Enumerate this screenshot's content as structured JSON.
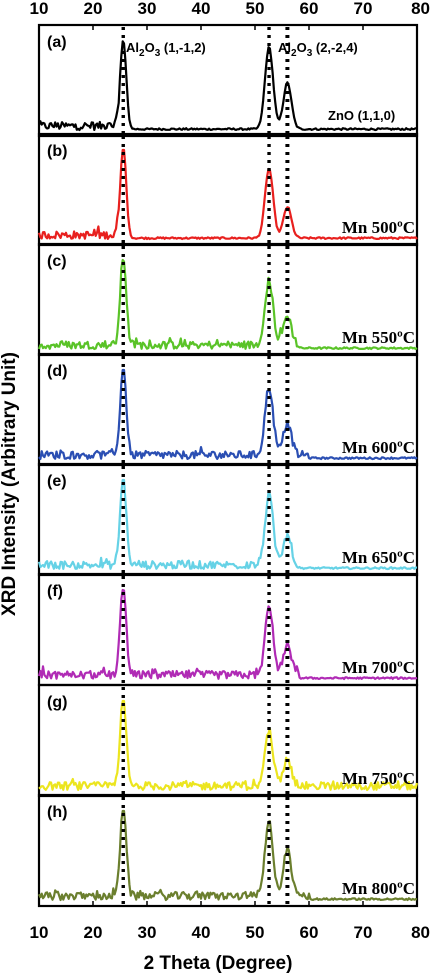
{
  "chart_data": {
    "type": "line",
    "xlabel": "2 Theta (Degree)",
    "ylabel": "XRD Intensity (Arbitrary Unit)",
    "xlim": [
      10,
      80
    ],
    "xticks": [
      "10",
      "20",
      "30",
      "40",
      "50",
      "60",
      "70",
      "80"
    ],
    "reference_lines_deg": [
      25.6,
      52.6,
      56.0
    ],
    "panels": [
      {
        "tag": "(a)",
        "color": "#000000",
        "label": "",
        "peaks": [
          [
            25.6,
            1.0
          ],
          [
            52.6,
            0.92
          ],
          [
            56.0,
            0.52
          ]
        ],
        "noise_end": 25
      },
      {
        "tag": "(b)",
        "color": "#e8201e",
        "label": "Mn 500ºC",
        "peaks": [
          [
            25.6,
            1.0
          ],
          [
            52.6,
            0.78
          ],
          [
            56.0,
            0.35
          ]
        ],
        "noise_end": 26
      },
      {
        "tag": "(c)",
        "color": "#5ac328",
        "label": "Mn 550ºC",
        "peaks": [
          [
            25.6,
            1.0
          ],
          [
            52.6,
            0.72
          ],
          [
            56.0,
            0.33
          ]
        ],
        "noise_end": 58
      },
      {
        "tag": "(d)",
        "color": "#2b4fb3",
        "label": "Mn 600ºC",
        "peaks": [
          [
            25.6,
            1.0
          ],
          [
            52.6,
            0.76
          ],
          [
            56.0,
            0.36
          ]
        ],
        "noise_end": 60
      },
      {
        "tag": "(e)",
        "color": "#66d2e6",
        "label": "Mn 650ºC",
        "peaks": [
          [
            25.6,
            1.0
          ],
          [
            52.6,
            0.78
          ],
          [
            56.0,
            0.33
          ]
        ],
        "noise_end": 57
      },
      {
        "tag": "(f)",
        "color": "#b02bb5",
        "label": "Mn 700ºC",
        "peaks": [
          [
            25.6,
            1.0
          ],
          [
            52.6,
            0.75
          ],
          [
            56.0,
            0.33
          ]
        ],
        "noise_end": 58
      },
      {
        "tag": "(g)",
        "color": "#ece51f",
        "label": "Mn 750ºC",
        "peaks": [
          [
            25.6,
            1.0
          ],
          [
            52.6,
            0.62
          ],
          [
            56.0,
            0.3
          ]
        ],
        "noise_end": 80
      },
      {
        "tag": "(h)",
        "color": "#6b7f2e",
        "label": "Mn 800ºC",
        "peaks": [
          [
            25.6,
            1.0
          ],
          [
            52.6,
            0.82
          ],
          [
            56.0,
            0.5
          ]
        ],
        "noise_end": 60
      }
    ],
    "annotations": {
      "al2o3_a": {
        "base": "Al",
        "sub1": "2",
        "mid": "O",
        "sub2": "3",
        "suffix": " (1,-1,2)"
      },
      "al2o3_b": {
        "base": "Al",
        "sub1": "2",
        "mid": "O",
        "sub2": "3",
        "suffix": " (2,-2,4)"
      },
      "zno": "ZnO (1,1,0)"
    }
  }
}
